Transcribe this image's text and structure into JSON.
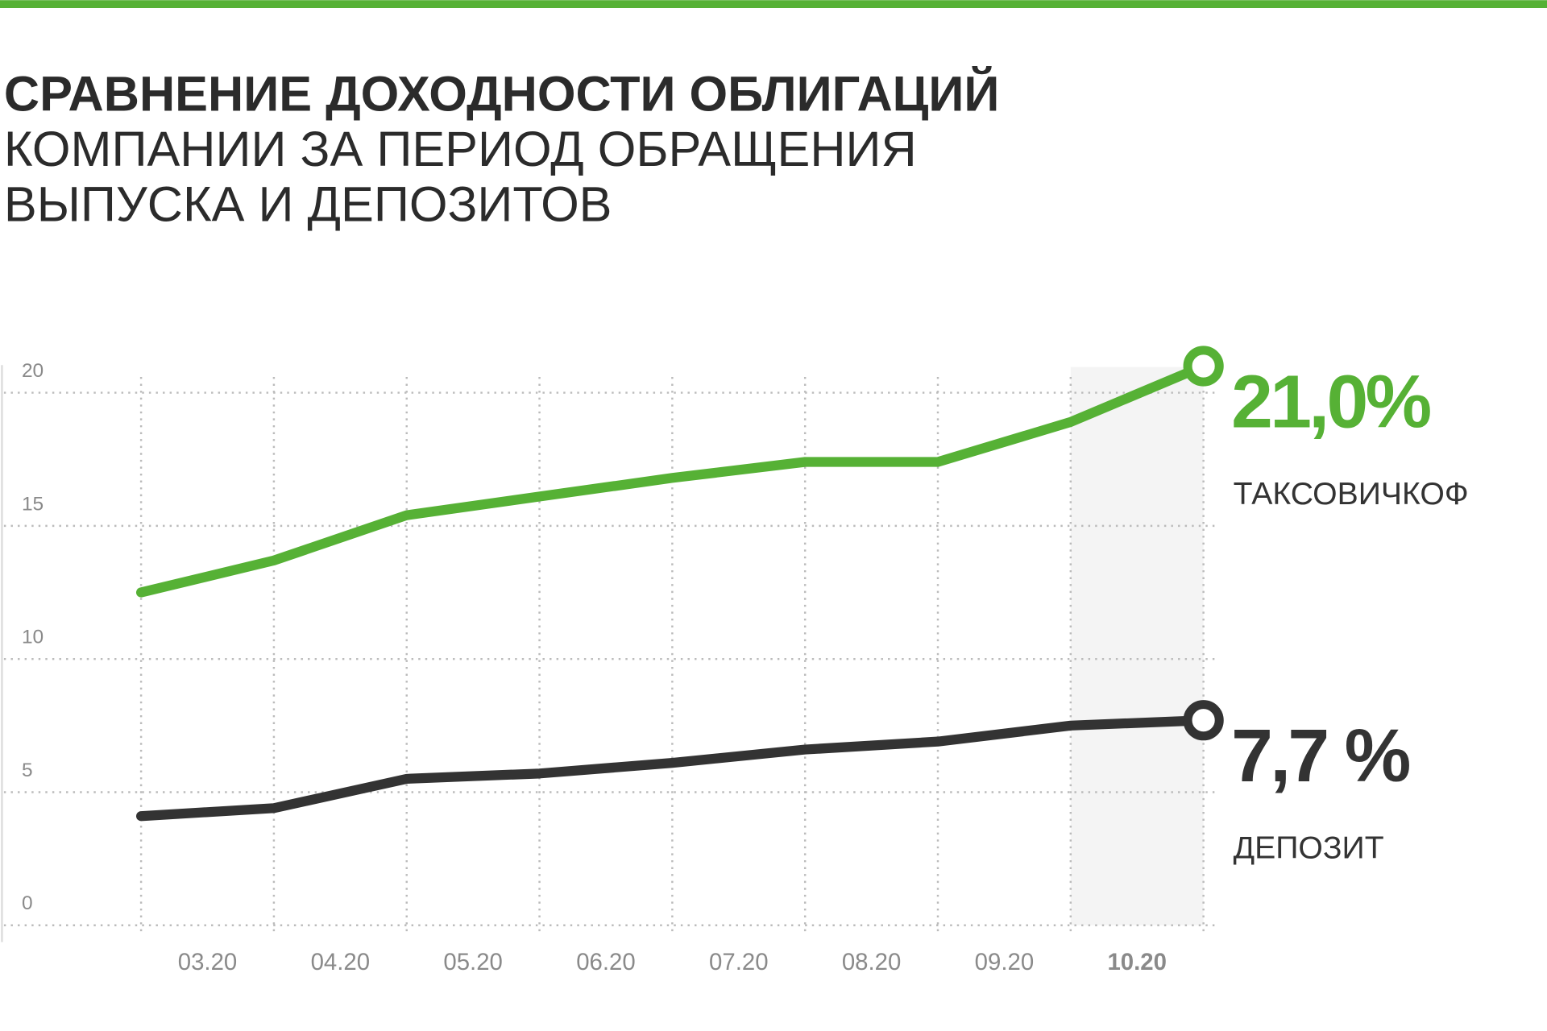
{
  "chart_data": {
    "type": "line",
    "title": "СРАВНЕНИЕ ДОХОДНОСТИ ОБЛИГАЦИЙ",
    "subtitle": [
      "КОМПАНИИ ЗА ПЕРИОД ОБРАЩЕНИЯ",
      "ВЫПУСКА И ДЕПОЗИТОВ"
    ],
    "categories": [
      null,
      "03.20",
      "04.20",
      "05.20",
      "06.20",
      "07.20",
      "08.20",
      "09.20",
      "10.20"
    ],
    "highlight_index": 8,
    "series": [
      {
        "name": "ТАКСОВИЧКОФ",
        "color": "#56b135",
        "values": [
          12.5,
          13.7,
          15.4,
          16.1,
          16.8,
          17.4,
          17.4,
          18.9,
          21.0
        ],
        "value_labels": [
          null,
          null,
          null,
          null,
          null,
          null,
          null,
          null,
          "21,0%"
        ]
      },
      {
        "name": "ДЕПОЗИТ",
        "color": "#333333",
        "values": [
          4.1,
          4.4,
          5.5,
          5.7,
          6.1,
          6.6,
          6.9,
          7.5,
          7.7
        ],
        "value_labels": [
          null,
          null,
          null,
          null,
          null,
          null,
          null,
          null,
          "7,7 %"
        ]
      }
    ],
    "ylim": [
      0,
      20
    ],
    "yticks": [
      0,
      5,
      10,
      15,
      20
    ],
    "grid": true
  }
}
